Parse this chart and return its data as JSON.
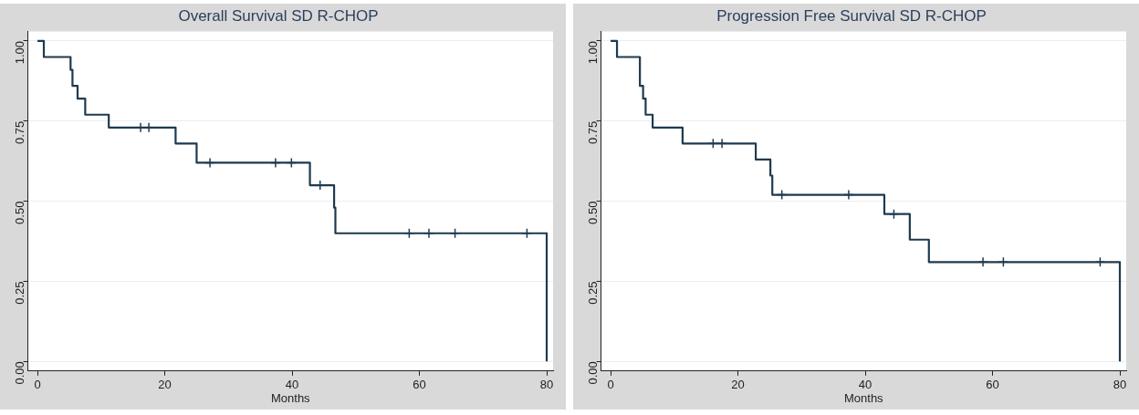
{
  "chart_data": [
    {
      "type": "step",
      "title": "Overall Survival SD R-CHOP",
      "xlabel": "Months",
      "xlim": [
        -1.5,
        81
      ],
      "xticks": [
        0,
        20,
        40,
        60,
        80
      ],
      "ylim": [
        -0.03,
        1.03
      ],
      "yticks": [
        {
          "value": 0,
          "label": "0.00"
        },
        {
          "value": 0.25,
          "label": "0.25"
        },
        {
          "value": 0.5,
          "label": "0.50"
        },
        {
          "value": 0.75,
          "label": "0.75"
        },
        {
          "value": 1,
          "label": "1.00"
        }
      ],
      "grid": "y",
      "legend": false,
      "series": [
        {
          "type": "step",
          "color": "#1e3a4f",
          "x": [
            0,
            1.0,
            5.2,
            5.5,
            6.3,
            7.5,
            11.2,
            21.7,
            25.0,
            42.8,
            46.6,
            46.8,
            80
          ],
          "values": [
            1,
            0.95,
            0.91,
            0.86,
            0.82,
            0.77,
            0.73,
            0.68,
            0.62,
            0.55,
            0.48,
            0.4,
            0
          ]
        },
        {
          "type": "scatter",
          "marker": "cross",
          "color": "#1e3a4f",
          "x": [
            16.2,
            17.5,
            27.1,
            37.4,
            39.9,
            44.4,
            58.4,
            61.5,
            65.6,
            76.9
          ],
          "values": [
            0.73,
            0.73,
            0.62,
            0.62,
            0.62,
            0.55,
            0.4,
            0.4,
            0.4,
            0.4
          ]
        }
      ]
    },
    {
      "type": "step",
      "title": "Progression Free Survival SD R-CHOP",
      "xlabel": "Months",
      "xlim": [
        -1.5,
        81
      ],
      "xticks": [
        0,
        20,
        40,
        60,
        80
      ],
      "ylim": [
        -0.03,
        1.03
      ],
      "yticks": [
        {
          "value": 0,
          "label": "0.00"
        },
        {
          "value": 0.25,
          "label": "0.25"
        },
        {
          "value": 0.5,
          "label": "0.50"
        },
        {
          "value": 0.75,
          "label": "0.75"
        },
        {
          "value": 1,
          "label": "1.00"
        }
      ],
      "grid": "y",
      "legend": false,
      "series": [
        {
          "type": "step",
          "color": "#1e3a4f",
          "x": [
            0,
            1.0,
            4.6,
            5.1,
            5.5,
            6.6,
            11.3,
            22.8,
            25.1,
            25.4,
            43.0,
            47.0,
            50.0,
            80
          ],
          "values": [
            1,
            0.95,
            0.86,
            0.82,
            0.77,
            0.73,
            0.68,
            0.63,
            0.58,
            0.52,
            0.46,
            0.38,
            0.31,
            0
          ]
        },
        {
          "type": "scatter",
          "marker": "cross",
          "color": "#1e3a4f",
          "x": [
            16.1,
            17.5,
            26.9,
            37.4,
            44.5,
            58.5,
            61.7,
            76.9
          ],
          "values": [
            0.68,
            0.68,
            0.52,
            0.52,
            0.46,
            0.31,
            0.31,
            0.31
          ]
        }
      ]
    }
  ]
}
